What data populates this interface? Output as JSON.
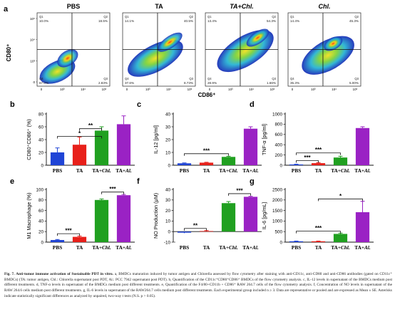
{
  "flow": {
    "panel_letter": "a",
    "y_label": "CD80⁺",
    "x_label": "CD86⁺",
    "y_ticks": [
      "10⁵",
      "10⁴",
      "10³",
      "0"
    ],
    "x_ticks": [
      "0",
      "10³",
      "10⁴",
      "10⁵"
    ],
    "plots": [
      {
        "title": "PBS",
        "q": [
          "Q1",
          "Q2",
          "Q4",
          "Q3"
        ],
        "v": [
          "10.0%",
          "18.5%",
          "67.0%",
          "2.83%"
        ]
      },
      {
        "title": "TA",
        "q": [
          "Q1",
          "Q2",
          "Q4",
          "Q3"
        ],
        "v": [
          "14.1%",
          "40.5%",
          "37.6%",
          "8.73%"
        ]
      },
      {
        "title": "TA+Chl.",
        "q": [
          "Q1",
          "Q2",
          "Q4",
          "Q3"
        ],
        "v": [
          "13.4%",
          "54.3%",
          "28.9%",
          "1.66%"
        ]
      },
      {
        "title": "Chl.",
        "q": [
          "Q1",
          "Q2",
          "Q4",
          "Q3"
        ],
        "v": [
          "14.4%",
          "45.3%",
          "35.3%",
          "5.00%"
        ]
      }
    ]
  },
  "colors": {
    "PBS": "#1f44d6",
    "TA": "#e8201a",
    "TA+Chl": "#20a020",
    "TA+Al": "#9a22c4"
  },
  "chart_data": [
    {
      "letter": "b",
      "type": "bar",
      "ylabel": "CD80⁺CD86⁺ (%)",
      "yticks": [
        0,
        20,
        40,
        60,
        80
      ],
      "ylim": [
        0,
        80
      ],
      "categories": [
        "PBS",
        "TA",
        "TA+Chl.",
        "TA+Al."
      ],
      "values": [
        20,
        32,
        54,
        64
      ],
      "errors": [
        7,
        12,
        6,
        13
      ],
      "sig": [
        {
          "label": "*",
          "from": 0,
          "to": 2,
          "y": 45
        },
        {
          "label": "**",
          "from": 1,
          "to": 2,
          "y": 57
        }
      ]
    },
    {
      "letter": "c",
      "type": "bar",
      "ylabel": "IL-12 [pg/ml]",
      "yticks": [
        0,
        10,
        20,
        30,
        40
      ],
      "ylim": [
        0,
        40
      ],
      "categories": [
        "PBS",
        "TA",
        "TA+Chl.",
        "TA+Al."
      ],
      "values": [
        1.5,
        2,
        6.5,
        28.5
      ],
      "errors": [
        0.3,
        0.3,
        0.5,
        1.5
      ],
      "sig": [
        {
          "label": "***",
          "from": 0,
          "to": 2,
          "y": 9
        }
      ]
    },
    {
      "letter": "d",
      "type": "bar",
      "ylabel": "TNF-α [pg/ml]",
      "yticks": [
        0,
        200,
        400,
        600,
        800,
        1000
      ],
      "ylim": [
        0,
        1000
      ],
      "categories": [
        "PBS",
        "TA",
        "TA+Chl.",
        "TA+Al."
      ],
      "values": [
        15,
        40,
        150,
        725
      ],
      "errors": [
        5,
        10,
        25,
        25
      ],
      "sig": [
        {
          "label": "***",
          "from": 0,
          "to": 1,
          "y": 90
        },
        {
          "label": "***",
          "from": 0,
          "to": 2,
          "y": 240
        }
      ]
    },
    {
      "letter": "e",
      "type": "bar",
      "ylabel": "M1 Macrophage (%)",
      "yticks": [
        0,
        20,
        40,
        60,
        80,
        100
      ],
      "ylim": [
        0,
        100
      ],
      "categories": [
        "PBS",
        "TA",
        "TA+Chl.",
        "TA+Al."
      ],
      "values": [
        4,
        10,
        80,
        89
      ],
      "errors": [
        1,
        1.5,
        2,
        1.5
      ],
      "sig": [
        {
          "label": "***",
          "from": 0,
          "to": 1,
          "y": 16
        },
        {
          "label": "***",
          "from": 2,
          "to": 3,
          "y": 95
        }
      ]
    },
    {
      "letter": "f",
      "type": "bar",
      "ylabel": "NO Production (μM)",
      "yticks": [
        -10,
        0,
        10,
        20,
        30,
        40
      ],
      "ylim": [
        -10,
        40
      ],
      "categories": [
        "PBS",
        "TA",
        "TA+Chl.",
        "TA+Al."
      ],
      "values": [
        -1,
        0.5,
        27,
        33
      ],
      "errors": [
        0.5,
        0.5,
        1.5,
        0.5
      ],
      "sig": [
        {
          "label": "**",
          "from": 0,
          "to": 1,
          "y": 3
        },
        {
          "label": "***",
          "from": 2,
          "to": 3,
          "y": 36
        }
      ]
    },
    {
      "letter": "g",
      "type": "bar",
      "ylabel": "IL-6 [pg/mL]",
      "yticks": [
        0,
        500,
        1000,
        1500,
        2000,
        2500
      ],
      "ylim": [
        0,
        2500
      ],
      "categories": [
        "PBS",
        "TA",
        "TA+Chl.",
        "TA+Al."
      ],
      "values": [
        40,
        40,
        390,
        1420
      ],
      "errors": [
        10,
        10,
        40,
        520
      ],
      "sig": [
        {
          "label": "***",
          "from": 0,
          "to": 2,
          "y": 520
        },
        {
          "label": "*",
          "from": 1,
          "to": 3,
          "y": 2050
        }
      ]
    }
  ],
  "caption": {
    "label": "Fig. 7.",
    "title": "Anti-tumor immune activation of Sustainable PDT in vitro.",
    "body": " a, BMDCs maturation induced by tumor antigen and Chlorella assessed by flow cytometry after staining with anti-CD11c, anti-CD80 and anti-CD86 antibodies (gated on CD11c⁺ BMDCs) (TA: tumor antigen, Chl.: Chlorella supernatant post PDT, Al.: PCC 7942 supernatant post PDT). b, Quantification of the CD11c⁺CD80⁺CD86⁺ BMDCs of the flow cytometry analysis. c, IL-12 levels in supernatant of the BMDCs medium post different treatments. d, TNF-α levels in supernatant of the BMDCs medium post different treatments. e, Quantification of the F4/80+CD11b + CD86⁺ RAW 264.7 cells of the flow cytometry analysis. f, Concentration of NO levels in supernatant of the RAW 264.6 cells medium post different treatments. g, IL-6 levels in supernatant of the RAW264.7 cells medium post different treatments. Each experimental group included n ≥ 3. Data are representative or pooled and are expressed as Mean ± SE. Asterisks indicate statistically significant differences as analyzed by unpaired, two-way t tests (N.S. p > 0.05)."
  }
}
